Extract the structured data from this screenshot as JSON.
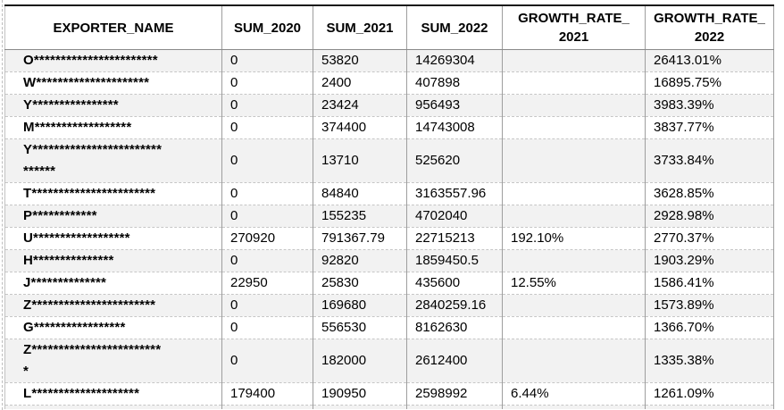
{
  "table": {
    "columns": [
      "EXPORTER_NAME",
      "SUM_2020",
      "SUM_2021",
      "SUM_2022",
      "GROWTH_RATE_\n2021",
      "GROWTH_RATE_\n2022"
    ],
    "column_keys": [
      "exporter-name",
      "sum-2020",
      "sum-2021",
      "sum-2022",
      "growth-rate-2021",
      "growth-rate-2022"
    ],
    "rows": [
      [
        "O***********************",
        "0",
        "53820",
        "14269304",
        "",
        "26413.01%"
      ],
      [
        "W*********************",
        "0",
        "2400",
        "407898",
        "",
        "16895.75%"
      ],
      [
        "Y****************",
        "0",
        "23424",
        "956493",
        "",
        "3983.39%"
      ],
      [
        "M******************",
        "0",
        "374400",
        "14743008",
        "",
        "3837.77%"
      ],
      [
        "Y************************\n******",
        "0",
        "13710",
        "525620",
        "",
        "3733.84%"
      ],
      [
        "T***********************",
        "0",
        "84840",
        "3163557.96",
        "",
        "3628.85%"
      ],
      [
        "P************",
        "0",
        "155235",
        "4702040",
        "",
        "2928.98%"
      ],
      [
        "U******************",
        "270920",
        "791367.79",
        "22715213",
        "192.10%",
        "2770.37%"
      ],
      [
        "H***************",
        "0",
        "92820",
        "1859450.5",
        "",
        "1903.29%"
      ],
      [
        "J**************",
        "22950",
        "25830",
        "435600",
        "12.55%",
        "1586.41%"
      ],
      [
        "Z***********************",
        "0",
        "169680",
        "2840259.16",
        "",
        "1573.89%"
      ],
      [
        "G*****************",
        "0",
        "556530",
        "8162630",
        "",
        "1366.70%"
      ],
      [
        "Z************************\n*",
        "0",
        "182000",
        "2612400",
        "",
        "1335.38%"
      ],
      [
        "L********************",
        "179400",
        "190950",
        "2598992",
        "6.44%",
        "1261.09%"
      ]
    ]
  },
  "colors": {
    "band_gray": "#f2f2f2",
    "band_white": "#ffffff",
    "column_border": "#9e9e9e",
    "row_border_dashed": "#c6c6c6",
    "header_bottom_border": "#8a8a8a",
    "table_top_border": "#1a1a1a",
    "page_break_dash": "#bdbdbd",
    "text": "#000000"
  }
}
